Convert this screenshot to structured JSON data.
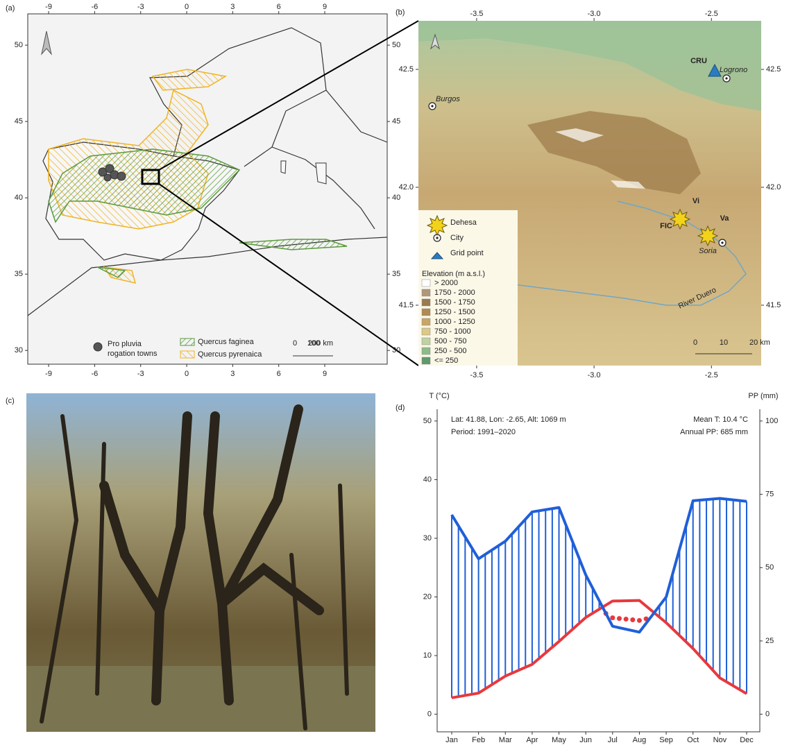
{
  "panel_labels": [
    "(a)",
    "(b)",
    "(c)",
    "(d)"
  ],
  "map_a": {
    "xlim": [
      -10.36,
      13.07
    ],
    "ylim": [
      29.1,
      52.05
    ],
    "xticks": [
      -9,
      -6,
      -3,
      0,
      3,
      6,
      9
    ],
    "yticks": [
      30,
      35,
      40,
      45,
      50
    ],
    "legend": {
      "towns": [
        "Pro pluvia",
        "rogation towns"
      ],
      "species": [
        {
          "label": "Quercus faginea",
          "color": "#5a9a3c"
        },
        {
          "label": "Quercus pyrenaica",
          "color": "#f0b323"
        }
      ],
      "scalebar": [
        "0",
        "100",
        "200 km"
      ]
    }
  },
  "map_b": {
    "xlim": [
      -3.748,
      -2.288
    ],
    "ylim": [
      41.244,
      42.706
    ],
    "xticks": [
      -3.5,
      {
        "value": -3,
        "label": "-3.0"
      },
      -2.5
    ],
    "yticks": [
      41.5,
      {
        "value": 42,
        "label": "42.0"
      },
      42.5
    ],
    "places": [
      "CRU",
      "Logrono",
      "Burgos",
      "Vi",
      "Va",
      "FIC",
      "Soria",
      "River Duero"
    ],
    "legend": {
      "symbols": [
        "Dehesa",
        "City",
        "Grid point"
      ],
      "elevation_title": "Elevation (m a.s.l.)",
      "classes": [
        {
          "label": "> 2000",
          "color": "#ffffff"
        },
        {
          "label": "1750 - 2000",
          "color": "#b0977a"
        },
        {
          "label": "1500 - 1750",
          "color": "#9a7a4e"
        },
        {
          "label": "1250 - 1500",
          "color": "#b08a52"
        },
        {
          "label": "1000 - 1250",
          "color": "#c9a666"
        },
        {
          "label": "750 - 1000",
          "color": "#dcc987"
        },
        {
          "label": "500 - 750",
          "color": "#bfd3a2"
        },
        {
          "label": "250 - 500",
          "color": "#8dbb8a"
        },
        {
          "label": "<= 250",
          "color": "#5e9a6c"
        }
      ]
    },
    "scalebar": [
      "0",
      "10",
      "20 km"
    ]
  },
  "chart_data": {
    "type": "climate-diagram",
    "categories": [
      "Jan",
      "Feb",
      "Mar",
      "Apr",
      "May",
      "Jun",
      "Jul",
      "Aug",
      "Sep",
      "Oct",
      "Nov",
      "Dec"
    ],
    "series": [
      {
        "color": "#e8383d",
        "values": [
          2.8,
          3.6,
          6.5,
          8.5,
          12.4,
          16.5,
          19.3,
          19.4,
          15.6,
          11.2,
          6.2,
          3.5
        ]
      },
      {
        "color": "#1f5fd8",
        "axis": "y2",
        "values": [
          68,
          53,
          59,
          69,
          70.5,
          47.5,
          30,
          28,
          40,
          72.8,
          73.6,
          72.6
        ]
      }
    ],
    "ylim": [
      -3,
      52
    ],
    "yticks": [
      0,
      10,
      20,
      30,
      40,
      50
    ],
    "y2lim": [
      -6,
      104
    ],
    "y2ticks": [
      0,
      25,
      50,
      75,
      100
    ],
    "y_label": "T (°C)",
    "y2_label": "PP (mm)",
    "annotations": [
      "Lat: 41.88, Lon: -2.65, Alt: 1069 m",
      "Period: 1991–2020",
      "Mean T: 10.4 °C",
      "Annual PP: 685 mm"
    ]
  }
}
